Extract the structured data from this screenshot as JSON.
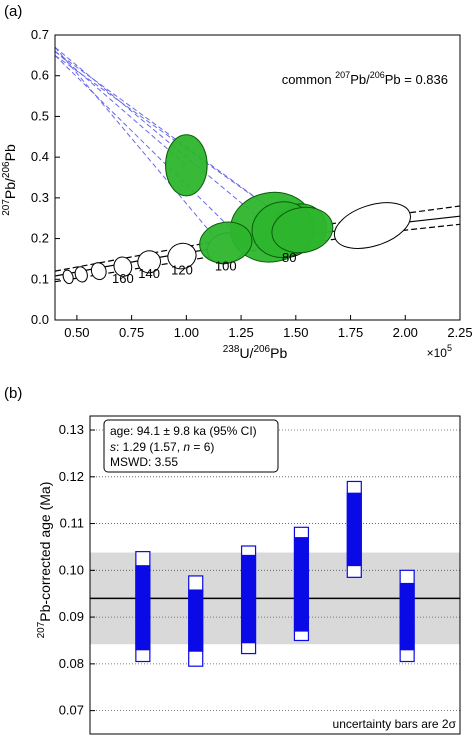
{
  "chart_data": [
    {
      "panel_label": "(a)",
      "type": "scatter",
      "subtype": "Tera-Wasserburg concordia with error ellipses",
      "xlabel_parts": [
        "238",
        "U/",
        "206",
        "Pb"
      ],
      "ylabel_parts": [
        "207",
        "Pb/",
        "206",
        "Pb"
      ],
      "x_multiplier": "×10",
      "x_multiplier_exp": "5",
      "xlim": [
        0.4,
        2.25
      ],
      "ylim": [
        0.0,
        0.7
      ],
      "xticks": [
        "0.50",
        "0.75",
        "1.00",
        "1.25",
        "1.50",
        "1.75",
        "2.00",
        "2.25"
      ],
      "yticks": [
        "0.0",
        "0.1",
        "0.2",
        "0.3",
        "0.4",
        "0.5",
        "0.6",
        "0.7"
      ],
      "annotation": {
        "prefix": "common ",
        "sup1": "207",
        "mid": "Pb/",
        "sup2": "206",
        "suffix": "Pb = 0.836"
      },
      "concordia_curve": [
        {
          "x": 0.4,
          "y": 0.108
        },
        {
          "x": 0.6,
          "y": 0.128
        },
        {
          "x": 0.8,
          "y": 0.147
        },
        {
          "x": 1.0,
          "y": 0.165
        },
        {
          "x": 1.2,
          "y": 0.182
        },
        {
          "x": 1.4,
          "y": 0.198
        },
        {
          "x": 1.6,
          "y": 0.213
        },
        {
          "x": 1.8,
          "y": 0.227
        },
        {
          "x": 2.0,
          "y": 0.24
        },
        {
          "x": 2.25,
          "y": 0.255
        }
      ],
      "concordia_upper": [
        {
          "x": 0.4,
          "y": 0.12
        },
        {
          "x": 1.2,
          "y": 0.2
        },
        {
          "x": 1.9,
          "y": 0.255
        },
        {
          "x": 2.25,
          "y": 0.28
        }
      ],
      "concordia_lower": [
        {
          "x": 0.4,
          "y": 0.094
        },
        {
          "x": 1.2,
          "y": 0.163
        },
        {
          "x": 1.9,
          "y": 0.215
        },
        {
          "x": 2.25,
          "y": 0.235
        }
      ],
      "age_markers": [
        {
          "label": "",
          "x": 0.46,
          "y": 0.106,
          "rx": 0.022,
          "ry": 0.017
        },
        {
          "label": "",
          "x": 0.52,
          "y": 0.112,
          "rx": 0.027,
          "ry": 0.019
        },
        {
          "label": "",
          "x": 0.6,
          "y": 0.12,
          "rx": 0.033,
          "ry": 0.021
        },
        {
          "label": "160",
          "x": 0.71,
          "y": 0.131,
          "rx": 0.04,
          "ry": 0.024
        },
        {
          "label": "140",
          "x": 0.83,
          "y": 0.143,
          "rx": 0.052,
          "ry": 0.027
        },
        {
          "label": "120",
          "x": 0.98,
          "y": 0.157,
          "rx": 0.065,
          "ry": 0.031
        },
        {
          "label": "100",
          "x": 1.18,
          "y": 0.176,
          "rx": 0.085,
          "ry": 0.037
        },
        {
          "label": "80",
          "x": 1.47,
          "y": 0.2,
          "rx": 0.12,
          "ry": 0.045
        },
        {
          "label": "",
          "x": 1.85,
          "y": 0.232,
          "rx": 0.18,
          "ry": 0.05
        }
      ],
      "age_label_offsets": {
        "160": [
          0.0,
          -0.04
        ],
        "140": [
          0.0,
          -0.04
        ],
        "120": [
          0.0,
          -0.045
        ],
        "100": [
          0.0,
          -0.055
        ],
        "80": [
          0.0,
          -0.058
        ]
      },
      "intercept_lines": [
        {
          "x": 1.39,
          "y": 0.225
        },
        {
          "x": 1.51,
          "y": 0.225
        },
        {
          "x": 1.52,
          "y": 0.222
        },
        {
          "x": 1.15,
          "y": 0.19
        },
        {
          "x": 1.0,
          "y": 0.38
        },
        {
          "x": 1.25,
          "y": 0.2
        }
      ],
      "intercept_y": 0.67,
      "ellipses": [
        {
          "x": 1.0,
          "y": 0.38,
          "rx": 0.095,
          "ry": 0.075
        },
        {
          "x": 1.39,
          "y": 0.228,
          "rx": 0.19,
          "ry": 0.085
        },
        {
          "x": 1.52,
          "y": 0.225,
          "rx": 0.12,
          "ry": 0.06
        },
        {
          "x": 1.44,
          "y": 0.222,
          "rx": 0.14,
          "ry": 0.068
        },
        {
          "x": 1.53,
          "y": 0.221,
          "rx": 0.14,
          "ry": 0.055
        },
        {
          "x": 1.18,
          "y": 0.19,
          "rx": 0.12,
          "ry": 0.05
        }
      ],
      "colors": {
        "ellipse_fill": "#2db52d",
        "ellipse_stroke": "#0a5c0a",
        "intercept": "#6868e8",
        "concordia": "#000000"
      }
    },
    {
      "panel_label": "(b)",
      "type": "bar",
      "subtype": "weighted mean age with uncertainty bars",
      "ylabel_sup": "207",
      "ylabel_rest": "Pb-corrected age (Ma)",
      "ylim": [
        0.065,
        0.133
      ],
      "yticks": [
        "0.07",
        "0.08",
        "0.09",
        "0.10",
        "0.11",
        "0.12",
        "0.13"
      ],
      "mean": 0.094,
      "band": [
        0.0842,
        0.1038
      ],
      "legend_lines": [
        {
          "text": "age: 94.1 ± 9.8 ka (95% CI)"
        },
        {
          "s_label": "s",
          "s_rest": ": 1.29 (1.57, ",
          "n_label": "n",
          "n_rest": " = 6)"
        },
        {
          "text": "MSWD: 3.55"
        }
      ],
      "footnote": "uncertainty bars are 2σ",
      "points": [
        {
          "outer": [
            0.0805,
            0.104
          ],
          "inner": [
            0.083,
            0.101
          ]
        },
        {
          "outer": [
            0.0795,
            0.0988
          ],
          "inner": [
            0.0827,
            0.0958
          ]
        },
        {
          "outer": [
            0.0822,
            0.1052
          ],
          "inner": [
            0.0845,
            0.1032
          ]
        },
        {
          "outer": [
            0.085,
            0.1092
          ],
          "inner": [
            0.087,
            0.107
          ]
        },
        {
          "outer": [
            0.0985,
            0.119
          ],
          "inner": [
            0.101,
            0.1165
          ]
        },
        {
          "outer": [
            0.0805,
            0.1
          ],
          "inner": [
            0.083,
            0.0972
          ]
        }
      ],
      "colors": {
        "bar": "#0a0ae6",
        "band": "#d9d9d9",
        "mean": "#000000"
      }
    }
  ]
}
